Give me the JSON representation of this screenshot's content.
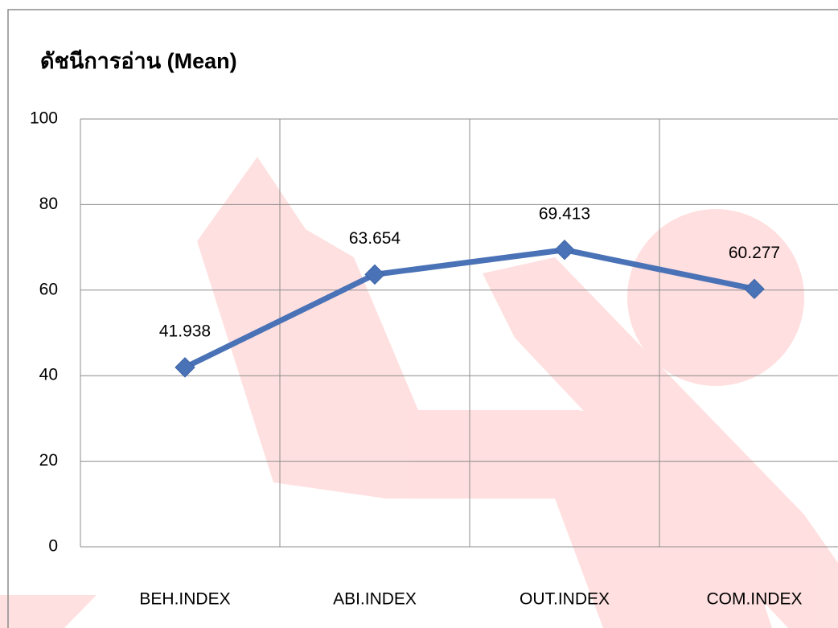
{
  "chart_data": {
    "type": "line",
    "title": "ดัชนีการอ่าน (Mean)",
    "categories": [
      "BEH.INDEX",
      "ABI.INDEX",
      "OUT.INDEX",
      "COM.INDEX"
    ],
    "series": [
      {
        "name": "Mean",
        "color": "#4a72b6",
        "values": [
          41.938,
          63.654,
          69.413,
          60.277
        ]
      }
    ],
    "ylim": [
      0,
      100
    ],
    "yticks": [
      0,
      20,
      40,
      60,
      80,
      100
    ],
    "grid": true
  }
}
